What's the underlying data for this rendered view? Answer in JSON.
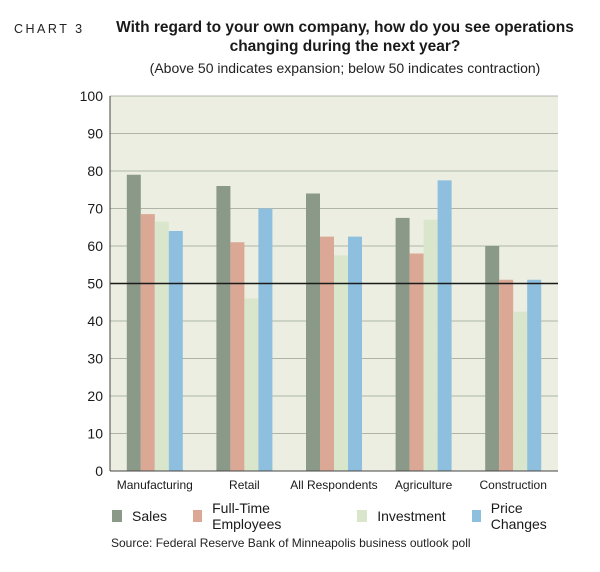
{
  "header": {
    "chart_number": "CHART 3",
    "title": "With regard to your own company, how do you see operations changing during the next year?",
    "subtitle": "(Above 50 indicates expansion; below 50 indicates contraction)"
  },
  "source": "Source: Federal Reserve Bank of Minneapolis business outlook poll",
  "colors": {
    "plot_background": "#ebeee0",
    "reference_line": "#1a1a1a"
  },
  "chart_data": {
    "type": "bar",
    "title": "With regard to your own company, how do you see operations changing during the next year?",
    "categories": [
      "Manufacturing",
      "Retail",
      "All Respondents",
      "Agriculture",
      "Construction"
    ],
    "series": [
      {
        "name": "Sales",
        "color": "#8b9a88",
        "values": [
          79,
          76,
          74,
          67.5,
          60
        ]
      },
      {
        "name": "Full-Time Employees",
        "color": "#dba896",
        "values": [
          68.5,
          61,
          62.5,
          58,
          51
        ]
      },
      {
        "name": "Investment",
        "color": "#d9e6cc",
        "values": [
          66.5,
          46,
          57.5,
          67,
          42.5
        ]
      },
      {
        "name": "Price Changes",
        "color": "#8ebfde",
        "values": [
          64,
          70,
          62.5,
          77.5,
          51
        ]
      }
    ],
    "ylim": [
      0,
      100
    ],
    "yticks": [
      0,
      10,
      20,
      30,
      40,
      50,
      60,
      70,
      80,
      90,
      100
    ],
    "reference_line": 50,
    "grid": true,
    "legend_position": "bottom"
  }
}
